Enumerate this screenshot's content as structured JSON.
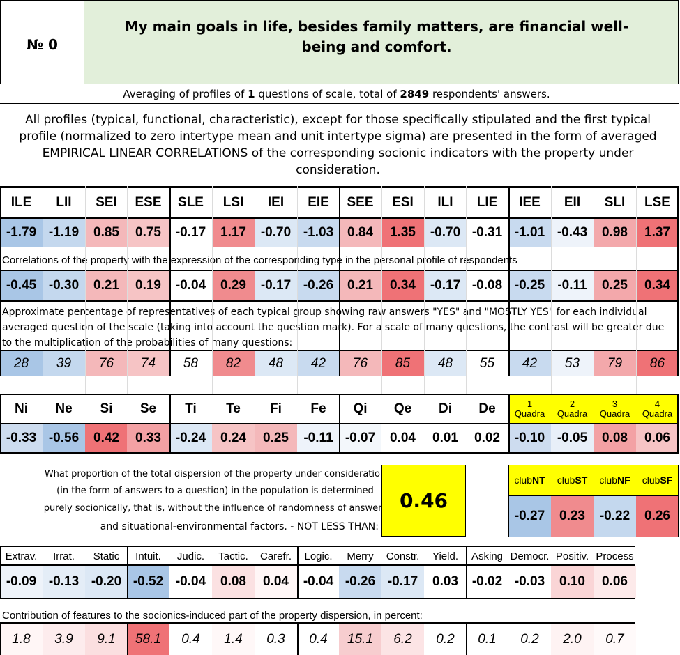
{
  "header": {
    "number_label": "№ 0",
    "question_title": "My main goals in life, besides family matters, are financial well-being and comfort."
  },
  "averaging": {
    "prefix": "Averaging of profiles of ",
    "num_questions": "1",
    "middle": " questions of scale, total of ",
    "num_respondents": "2849",
    "suffix": " respondents' answers."
  },
  "description": "All profiles (typical, functional, characteristic), except for those specifically stipulated and the first typical profile (normalized to zero intertype mean and unit intertype sigma) are presented in the form of averaged EMPIRICAL LINEAR CORRELATIONS of the corresponding socionic indicators with the property under consideration.",
  "types": {
    "labels": [
      "ILE",
      "LII",
      "SEI",
      "ESE",
      "SLE",
      "LSI",
      "IEI",
      "EIE",
      "SEE",
      "ESI",
      "ILI",
      "LIE",
      "IEE",
      "EII",
      "SLI",
      "LSE"
    ],
    "values": [
      "-1.79",
      "-1.19",
      "0.85",
      "0.75",
      "-0.17",
      "1.17",
      "-0.70",
      "-1.03",
      "0.84",
      "1.35",
      "-0.70",
      "-0.31",
      "-1.01",
      "-0.43",
      "0.98",
      "1.37"
    ],
    "colors": [
      "#a9c6e6",
      "#c4d8ee",
      "#f4b8ba",
      "#f6c4c5",
      "#ffffff",
      "#f08b8e",
      "#dce8f5",
      "#c8daef",
      "#f4b8ba",
      "#ef7276",
      "#dce8f5",
      "#ffffff",
      "#c8daef",
      "#eef3fa",
      "#f3a8ab",
      "#ef7276"
    ]
  },
  "correlations_caption": "Correlations of the property with the expression of the corresponding type in the personal profile of respondents",
  "correlations": {
    "values": [
      "-0.45",
      "-0.30",
      "0.21",
      "0.19",
      "-0.04",
      "0.29",
      "-0.17",
      "-0.26",
      "0.21",
      "0.34",
      "-0.17",
      "-0.08",
      "-0.25",
      "-0.11",
      "0.25",
      "0.34"
    ],
    "colors": [
      "#a9c6e6",
      "#c4d8ee",
      "#f4b8ba",
      "#f6c4c5",
      "#ffffff",
      "#f08b8e",
      "#dce8f5",
      "#c8daef",
      "#f4b8ba",
      "#ef7276",
      "#dce8f5",
      "#ffffff",
      "#c8daef",
      "#eef3fa",
      "#f3a8ab",
      "#ef7276"
    ]
  },
  "percentage_caption": "Approximate percentage of representatives of each typical group showing raw answers \"YES\" and \"MOSTLY YES\" for each individual averaged question of the scale (taking into account the question mark). For a scale of many questions, the contrast will be greater due to the multiplication of the probabilities of many questions:",
  "percentages": {
    "values": [
      "28",
      "39",
      "76",
      "74",
      "58",
      "82",
      "48",
      "42",
      "76",
      "85",
      "48",
      "55",
      "42",
      "53",
      "79",
      "86"
    ],
    "colors": [
      "#a9c6e6",
      "#c4d8ee",
      "#f4b8ba",
      "#f6c4c5",
      "#ffffff",
      "#f08b8e",
      "#dce8f5",
      "#c8daef",
      "#f4b8ba",
      "#ef7276",
      "#dce8f5",
      "#ffffff",
      "#c8daef",
      "#eef3fa",
      "#f3a8ab",
      "#ef7276"
    ]
  },
  "functions": {
    "labels": [
      "Ni",
      "Ne",
      "Si",
      "Se",
      "Ti",
      "Te",
      "Fi",
      "Fe",
      "Qi",
      "Qe",
      "Di",
      "De"
    ],
    "values": [
      "-0.33",
      "-0.56",
      "0.42",
      "0.33",
      "-0.24",
      "0.24",
      "0.25",
      "-0.11",
      "-0.07",
      "0.04",
      "0.01",
      "0.02"
    ],
    "colors": [
      "#cddcef",
      "#a9c6e6",
      "#ef7276",
      "#f3a1a4",
      "#dce8f5",
      "#f6c4c5",
      "#f4b8ba",
      "#eef3fa",
      "#f3f7fb",
      "#ffffff",
      "#ffffff",
      "#ffffff"
    ]
  },
  "quadras": {
    "labels": [
      [
        "1",
        "Quadra"
      ],
      [
        "2",
        "Quadra"
      ],
      [
        "3",
        "Quadra"
      ],
      [
        "4",
        "Quadra"
      ]
    ],
    "values": [
      "-0.10",
      "-0.05",
      "0.08",
      "0.06"
    ],
    "colors": [
      "#cddcef",
      "#e8eff8",
      "#f3a1a4",
      "#f6c4c5"
    ],
    "header_color": "#ffff00"
  },
  "dispersion": {
    "text_lines": [
      "What proportion of the total dispersion of the property under consideration",
      "(in the form of answers to a question) in the population is determined",
      "purely socionically, that is, without the influence of randomness of answers",
      "and situational-environmental factors. - NOT LESS THAN:"
    ],
    "value": "0.46",
    "highlight": "#ffff00"
  },
  "clubs": {
    "labels": [
      [
        "club",
        "NT"
      ],
      [
        "club",
        "ST"
      ],
      [
        "club",
        "NF"
      ],
      [
        "club",
        "SF"
      ]
    ],
    "values": [
      "-0.27",
      "0.23",
      "-0.22",
      "0.26"
    ],
    "colors": [
      "#a9c6e6",
      "#f08b8e",
      "#c4d8ee",
      "#ef7276"
    ]
  },
  "features": {
    "labels": [
      "Extrav.",
      "Irrat.",
      "Static",
      "Intuit.",
      "Judic.",
      "Tactic.",
      "Carefr.",
      "Logic.",
      "Merry",
      "Constr.",
      "Yield.",
      "Asking",
      "Democr.",
      "Positiv.",
      "Process"
    ],
    "values": [
      "-0.09",
      "-0.13",
      "-0.20",
      "-0.52",
      "-0.04",
      "0.08",
      "0.04",
      "-0.04",
      "-0.26",
      "-0.17",
      "0.03",
      "-0.02",
      "-0.03",
      "0.10",
      "0.06"
    ],
    "colors": [
      "#eef3fa",
      "#e4edf7",
      "#dce8f5",
      "#a9c6e6",
      "#ffffff",
      "#fbe1e2",
      "#fff6f6",
      "#ffffff",
      "#c8daef",
      "#dce8f5",
      "#ffffff",
      "#ffffff",
      "#ffffff",
      "#fad5d6",
      "#fdeaea"
    ]
  },
  "contribution_caption": "Contribution of features to the socionics-induced part of the property dispersion, in percent:",
  "contributions": {
    "values": [
      "1.8",
      "3.9",
      "9.1",
      "58.1",
      "0.4",
      "1.4",
      "0.3",
      "0.4",
      "15.1",
      "6.2",
      "0.2",
      "0.1",
      "0.2",
      "2.0",
      "0.7"
    ],
    "colors": [
      "#fff6f6",
      "#fdeced",
      "#fbdfe0",
      "#ef7276",
      "#ffffff",
      "#fff8f8",
      "#ffffff",
      "#ffffff",
      "#f7cdcf",
      "#fce4e5",
      "#ffffff",
      "#ffffff",
      "#ffffff",
      "#fef3f3",
      "#fffafa"
    ]
  },
  "accent_green": "#e2efda"
}
